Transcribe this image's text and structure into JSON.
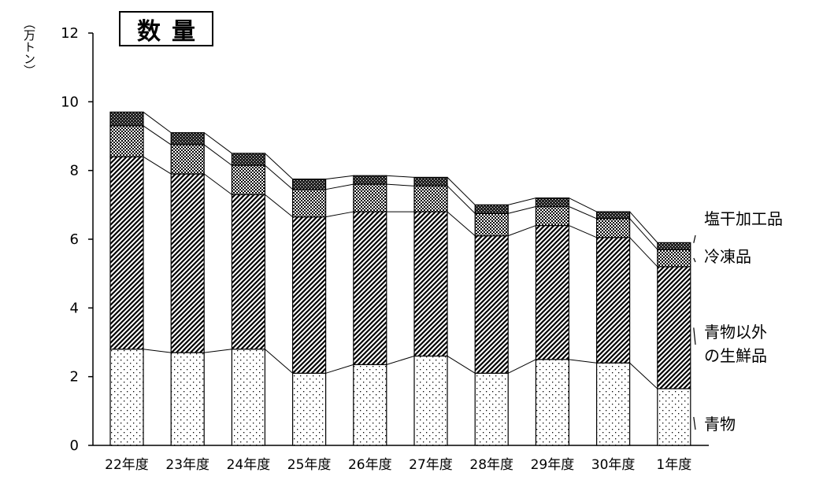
{
  "chart_data": {
    "type": "bar",
    "stacked": true,
    "title": "数量",
    "ylabel": "（万トン）",
    "ylim": [
      0,
      12
    ],
    "yticks": [
      "0",
      "2",
      "4",
      "6",
      "8",
      "10",
      "12"
    ],
    "categories": [
      "22年度",
      "23年度",
      "24年度",
      "25年度",
      "26年度",
      "27年度",
      "28年度",
      "29年度",
      "30年度",
      "1年度"
    ],
    "series": [
      {
        "name": "青物",
        "values": [
          2.8,
          2.7,
          2.8,
          2.1,
          2.35,
          2.6,
          2.1,
          2.5,
          2.4,
          1.65
        ]
      },
      {
        "name": "青物以外\nの生鮮品",
        "values": [
          5.6,
          5.2,
          4.5,
          4.55,
          4.45,
          4.2,
          4.0,
          3.9,
          3.65,
          3.55
        ]
      },
      {
        "name": "冷凍品",
        "values": [
          0.9,
          0.85,
          0.85,
          0.8,
          0.8,
          0.75,
          0.65,
          0.55,
          0.55,
          0.5
        ]
      },
      {
        "name": "塩干加工品",
        "values": [
          0.4,
          0.35,
          0.35,
          0.3,
          0.25,
          0.25,
          0.25,
          0.25,
          0.2,
          0.2
        ]
      }
    ],
    "grid": false,
    "legend_placement": "right, labels beside last bar"
  },
  "colors": {
    "border": "#000000",
    "background": "#ffffff"
  }
}
